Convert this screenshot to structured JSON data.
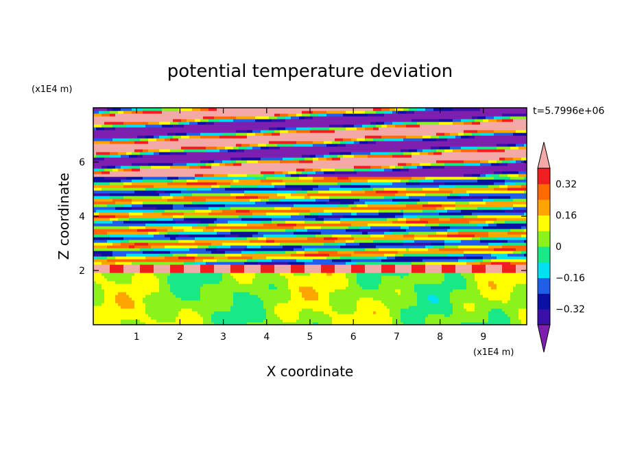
{
  "chart_data": {
    "type": "heatmap",
    "title": "potential temperature deviation",
    "xlabel": "X coordinate",
    "ylabel": "Z coordinate",
    "x_unit": "(x1E4 m)",
    "y_unit": "(x1E4 m)",
    "time_label": "t=5.7996e+06",
    "xlim": [
      0,
      10
    ],
    "ylim": [
      0,
      8
    ],
    "x_ticks": [
      "1",
      "2",
      "3",
      "4",
      "5",
      "6",
      "7",
      "8",
      "9"
    ],
    "y_ticks": [
      "2",
      "4",
      "6"
    ],
    "x_tick_values": [
      1,
      2,
      3,
      4,
      5,
      6,
      7,
      8,
      9
    ],
    "y_tick_values": [
      2,
      4,
      6
    ],
    "colorbar": {
      "levels": [
        -0.4,
        -0.32,
        -0.24,
        -0.16,
        -0.08,
        0,
        0.08,
        0.16,
        0.24,
        0.32,
        0.4
      ],
      "tick_labels": [
        "0.32",
        "0.16",
        "0",
        "−0.16",
        "−0.32"
      ],
      "tick_values": [
        0.32,
        0.16,
        0,
        -0.16,
        -0.32
      ],
      "under_color": "#7f1fb0",
      "over_color": "#f4a9a9",
      "band_colors": [
        "#3a0fa8",
        "#0a10a0",
        "#1f5fe6",
        "#00e0f0",
        "#19e887",
        "#8cf21c",
        "#ffff00",
        "#ffa500",
        "#ff6a00",
        "#f01e1e"
      ]
    },
    "layers": [
      {
        "z_range": [
          0,
          1.9
        ],
        "pattern": "weak positive/negative mix",
        "dominant_values": [
          0,
          0.08
        ]
      },
      {
        "z_range": [
          1.9,
          2.2
        ],
        "pattern": "strong positive band",
        "dominant_values": [
          0.4
        ]
      },
      {
        "z_range": [
          2.2,
          5.5
        ],
        "pattern": "layered alternating bands",
        "dominant_values": [
          -0.24,
          -0.08,
          0,
          0.08,
          0.16,
          0.24
        ]
      },
      {
        "z_range": [
          5.5,
          8
        ],
        "pattern": "strong alternating layers",
        "dominant_values": [
          -0.4,
          0.4
        ]
      }
    ]
  }
}
